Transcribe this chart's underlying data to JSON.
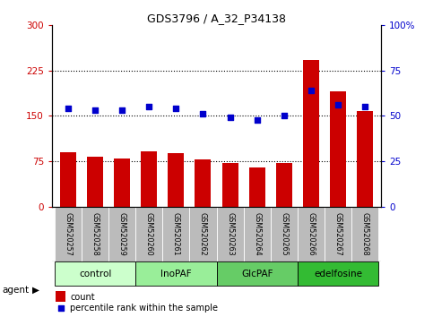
{
  "title": "GDS3796 / A_32_P34138",
  "samples": [
    "GSM520257",
    "GSM520258",
    "GSM520259",
    "GSM520260",
    "GSM520261",
    "GSM520262",
    "GSM520263",
    "GSM520264",
    "GSM520265",
    "GSM520266",
    "GSM520267",
    "GSM520268"
  ],
  "counts": [
    90,
    82,
    80,
    92,
    88,
    78,
    72,
    65,
    72,
    242,
    190,
    158
  ],
  "percentile": [
    54,
    53,
    53,
    55,
    54,
    51,
    49,
    48,
    50,
    64,
    56,
    55
  ],
  "bar_color": "#cc0000",
  "dot_color": "#0000cc",
  "left_ylim": [
    0,
    300
  ],
  "right_ylim": [
    0,
    100
  ],
  "left_yticks": [
    0,
    75,
    150,
    225,
    300
  ],
  "left_yticklabels": [
    "0",
    "75",
    "150",
    "225",
    "300"
  ],
  "right_yticks": [
    0,
    25,
    50,
    75,
    100
  ],
  "right_yticklabels": [
    "0",
    "25",
    "50",
    "75",
    "100%"
  ],
  "hlines": [
    75,
    150,
    225
  ],
  "groups": [
    {
      "label": "control",
      "start": 0,
      "end": 2,
      "color": "#ccffcc"
    },
    {
      "label": "InoPAF",
      "start": 3,
      "end": 5,
      "color": "#99ee99"
    },
    {
      "label": "GlcPAF",
      "start": 6,
      "end": 8,
      "color": "#66cc66"
    },
    {
      "label": "edelfosine",
      "start": 9,
      "end": 11,
      "color": "#33bb33"
    }
  ],
  "agent_label": "agent",
  "legend_count_label": "count",
  "legend_pct_label": "percentile rank within the sample",
  "tick_bg_color": "#bbbbbb",
  "figsize": [
    4.83,
    3.54
  ],
  "dpi": 100
}
